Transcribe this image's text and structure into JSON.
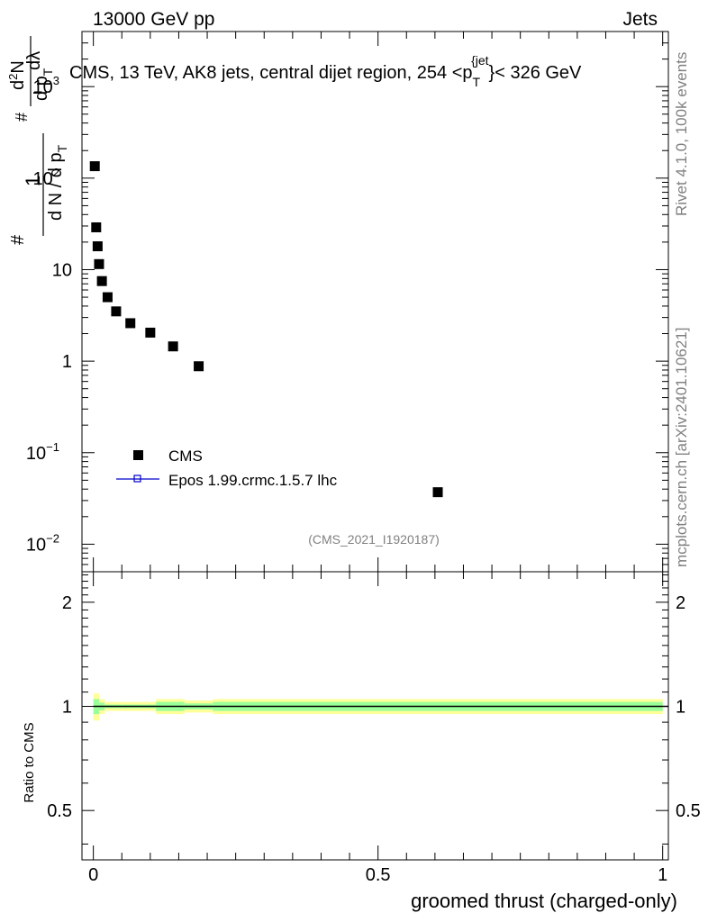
{
  "header": {
    "left": "13000 GeV pp",
    "right": "Jets"
  },
  "side": {
    "rivet": "Rivet 4.1.0,  100k events",
    "mcplots": "mcplots.cern.ch [arXiv:2401.10621]"
  },
  "chart_data": [
    {
      "type": "scatter",
      "title": "CMS, 13 TeV, AK8 jets, central dijet region, 254 <p_T^{jet}< 326 GeV",
      "title_parts": {
        "main": "CMS, 13 TeV, AK8 jets, central dijet region, 254 <p",
        "sub": "T",
        "sup": "{jet",
        "tail": "}< 326 GeV"
      },
      "ylabel_parts": {
        "hash": "#",
        "one": "1",
        "dN": "d N / d p",
        "sub_T": "T",
        "hash2": "#",
        "num": "d",
        "sup2": "2",
        "numN": "N",
        "den": "d p",
        "den_sub": "T",
        "dlambda": "dλ"
      },
      "xlabel": "groomed thrust (charged-only)",
      "xlim": [
        -0.02,
        1.01
      ],
      "ylim_log": [
        0.005,
        4000
      ],
      "yscale": "log",
      "y_ticks": [
        {
          "value": 0.01,
          "mantissa": "10",
          "exp": "−2"
        },
        {
          "value": 0.1,
          "mantissa": "10",
          "exp": "−1"
        },
        {
          "value": 1,
          "mantissa": "1",
          "exp": ""
        },
        {
          "value": 10,
          "mantissa": "10",
          "exp": ""
        },
        {
          "value": 100,
          "mantissa": "10",
          "exp": "2"
        },
        {
          "value": 1000,
          "mantissa": "10",
          "exp": "3"
        }
      ],
      "series": [
        {
          "name": "CMS",
          "marker": "square",
          "color": "#000000",
          "x": [
            0.0025,
            0.005,
            0.0075,
            0.01,
            0.015,
            0.025,
            0.04,
            0.065,
            0.1,
            0.14,
            0.185,
            0.605
          ],
          "y": [
            135,
            29,
            18,
            11.5,
            7.5,
            5.0,
            3.5,
            2.6,
            2.05,
            1.45,
            0.88,
            0.037
          ]
        },
        {
          "name": "Epos 1.99.crmc.1.5.7 lhc",
          "marker": "open-square-line",
          "color": "#0000cc",
          "x": [],
          "y": []
        }
      ],
      "legend": "middle-left",
      "watermark": "(CMS_2021_I1920187)"
    },
    {
      "type": "line",
      "ylabel": "Ratio to CMS",
      "xlabel": "groomed thrust (charged-only)",
      "ylim_log": [
        0.36,
        2.45
      ],
      "xlim": [
        -0.02,
        1.01
      ],
      "y_ticks": [
        {
          "value": 0.5,
          "label": "0.5"
        },
        {
          "value": 1,
          "label": "1"
        },
        {
          "value": 2,
          "label": "2"
        }
      ],
      "x_ticks": [
        {
          "value": 0,
          "label": "0"
        },
        {
          "value": 0.5,
          "label": "0.5"
        },
        {
          "value": 1,
          "label": "1"
        }
      ],
      "reference_value": 1,
      "band_colors": {
        "outer": "#ffff99",
        "inner": "#99ff99"
      },
      "band": {
        "x_edges": [
          0.0,
          0.01,
          0.02,
          0.05,
          0.11,
          0.16,
          0.21,
          1.0
        ],
        "outer_halfwidth": [
          0.09,
          0.05,
          0.03,
          0.03,
          0.05,
          0.04,
          0.05
        ],
        "inner_halfwidth": [
          0.05,
          0.025,
          0.012,
          0.012,
          0.03,
          0.02,
          0.03
        ]
      }
    }
  ]
}
